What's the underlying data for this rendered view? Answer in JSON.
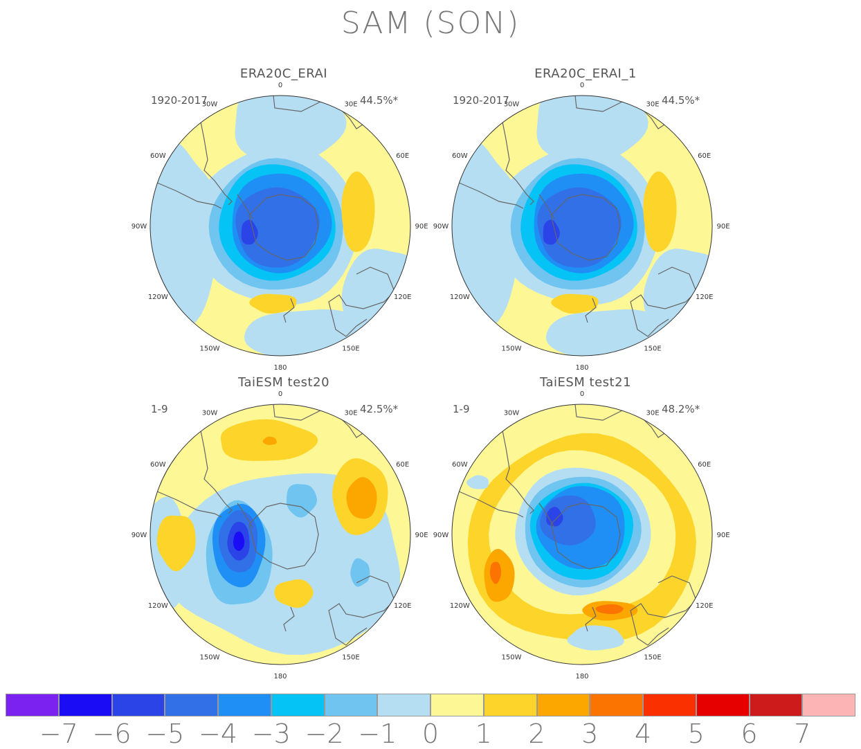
{
  "title": "SAM (SON)",
  "colors": {
    "c_m8": "#7b22f0",
    "c_m7": "#1a0cf5",
    "c_m6": "#2a44e8",
    "c_m5": "#3170e6",
    "c_m4": "#1f8ff6",
    "c_m3": "#05c3f5",
    "c_m2": "#6fc4f0",
    "c_m1": "#b6def3",
    "c_0": "#fdf796",
    "c_1": "#fdd42a",
    "c_2": "#fca700",
    "c_3": "#fb7300",
    "c_4": "#fb3000",
    "c_5": "#e70000",
    "c_6": "#cd1b1b",
    "c_7": "#fdb4b4",
    "land": "#666666"
  },
  "longitude_labels": [
    "0",
    "30E",
    "60E",
    "90E",
    "120E",
    "150E",
    "180",
    "150W",
    "120W",
    "90W",
    "60W",
    "30W"
  ],
  "panels": [
    {
      "id": "era20c-erai",
      "title": "ERA20C_ERAI",
      "period": "1920-2017",
      "variance": "44.5%*"
    },
    {
      "id": "era20c-erai-1",
      "title": "ERA20C_ERAI_1",
      "period": "1920-2017",
      "variance": "44.5%*"
    },
    {
      "id": "taiesm-test20",
      "title": "TaiESM test20",
      "period": "1-9",
      "variance": "42.5%*"
    },
    {
      "id": "taiesm-test21",
      "title": "TaiESM test21",
      "period": "1-9",
      "variance": "48.2%*"
    }
  ],
  "colorbar": {
    "colors": [
      "#7b22f0",
      "#1a0cf5",
      "#2a44e8",
      "#3170e6",
      "#1f8ff6",
      "#05c3f5",
      "#6fc4f0",
      "#b6def3",
      "#fdf796",
      "#fdd42a",
      "#fca700",
      "#fb7300",
      "#fb3000",
      "#e70000",
      "#cd1b1b",
      "#fdb4b4"
    ],
    "tick_labels": [
      "−7",
      "−6",
      "−5",
      "−4",
      "−3",
      "−2",
      "−1",
      "0",
      "1",
      "2",
      "3",
      "4",
      "5",
      "6",
      "7"
    ]
  }
}
